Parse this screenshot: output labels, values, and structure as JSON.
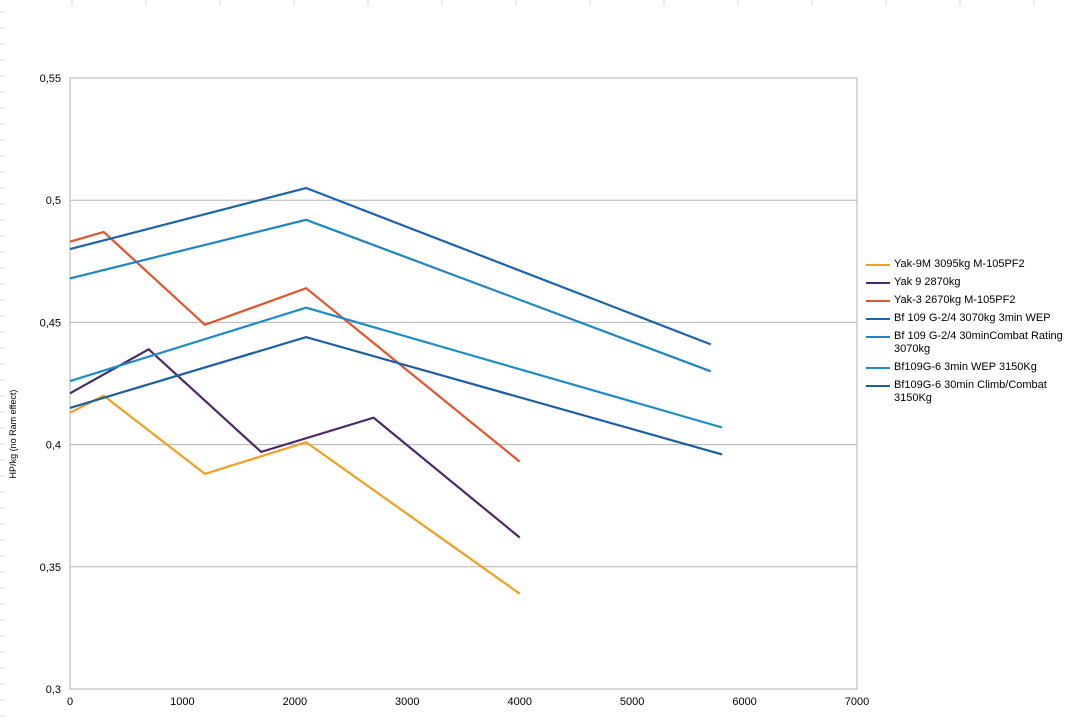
{
  "colors": {
    "background": "#ffffff",
    "plot_border": "#b3b3b3",
    "gridline": "#b3b3b3",
    "sheet_grid": "#d9d9d9"
  },
  "chart_data": {
    "type": "line",
    "title": "",
    "xlabel": "",
    "ylabel": "HP/kg (no Ram effect)",
    "xlim": [
      0,
      7000
    ],
    "ylim": [
      0.3,
      0.55
    ],
    "x_ticks": [
      0,
      1000,
      2000,
      3000,
      4000,
      5000,
      6000,
      7000
    ],
    "x_tick_labels": [
      "0",
      "1000",
      "2000",
      "3000",
      "4000",
      "5000",
      "6000",
      "7000"
    ],
    "y_ticks": [
      0.3,
      0.35,
      0.4,
      0.45,
      0.5,
      0.55
    ],
    "y_tick_labels": [
      "0,3",
      "0,35",
      "0,4",
      "0,45",
      "0,5",
      "0,55"
    ],
    "grid": "horizontal",
    "legend_position": "right",
    "series": [
      {
        "name": "Yak-9M 3095kg M-105PF2",
        "color": "#f0a020",
        "x": [
          0,
          300,
          1200,
          2100,
          4000
        ],
        "y": [
          0.413,
          0.42,
          0.388,
          0.401,
          0.339
        ]
      },
      {
        "name": "Yak 9 2870kg",
        "color": "#4b2a6a",
        "x": [
          0,
          700,
          1700,
          2700,
          4000
        ],
        "y": [
          0.421,
          0.439,
          0.397,
          0.411,
          0.362
        ]
      },
      {
        "name": "Yak-3 2670kg M-105PF2",
        "color": "#e4532c",
        "x": [
          0,
          300,
          1200,
          2100,
          4000
        ],
        "y": [
          0.483,
          0.487,
          0.449,
          0.464,
          0.393
        ]
      },
      {
        "name": "Bf 109 G-2/4 3070kg 3min WEP",
        "color": "#1a64ad",
        "x": [
          0,
          2100,
          5700
        ],
        "y": [
          0.48,
          0.505,
          0.441
        ]
      },
      {
        "name": "Bf 109 G-2/4 30minCombat Rating 3070kg",
        "color": "#1c86c4",
        "x": [
          0,
          2100,
          5700
        ],
        "y": [
          0.468,
          0.492,
          0.43
        ]
      },
      {
        "name": "Bf109G-6 3min WEP 3150Kg",
        "color": "#1d8cc9",
        "x": [
          0,
          2100,
          5800
        ],
        "y": [
          0.426,
          0.456,
          0.407
        ]
      },
      {
        "name": "Bf109G-6 30min Climb/Combat 3150Kg",
        "color": "#1a5ea6",
        "x": [
          0,
          2100,
          5800
        ],
        "y": [
          0.415,
          0.444,
          0.396
        ]
      }
    ]
  }
}
